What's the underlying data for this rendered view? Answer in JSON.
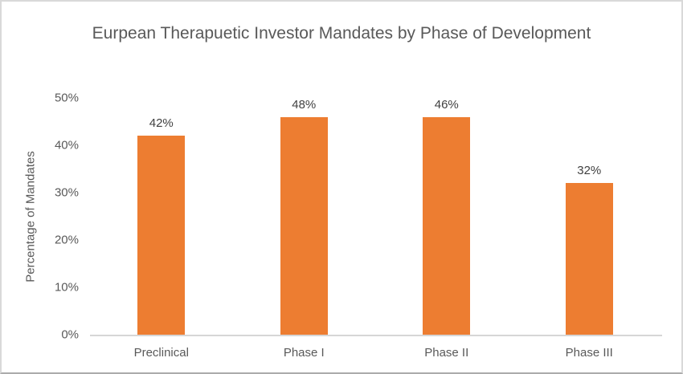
{
  "chart_data": {
    "type": "bar",
    "title": "Eurpean Therapuetic Investor Mandates by Phase of Development",
    "ylabel": "Percentage of Mandates",
    "xlabel": "",
    "categories": [
      "Preclinical",
      "Phase I",
      "Phase II",
      "Phase III"
    ],
    "values": [
      42,
      48,
      46,
      32
    ],
    "data_labels": [
      "42%",
      "48%",
      "46%",
      "32%"
    ],
    "ytick_labels": [
      "0%",
      "10%",
      "20%",
      "30%",
      "40%",
      "50%"
    ],
    "ylim": [
      0,
      50
    ],
    "grid": false,
    "legend": false,
    "colors": {
      "bar": "#ED7D31",
      "title_text": "#595959",
      "axis_text": "#595959",
      "data_label_text": "#404040",
      "axis_line": "#D6D6D6",
      "chart_border": "#D9D9D9",
      "chart_border_bottom": "#ABABAB",
      "background": "#FFFFFF"
    }
  }
}
